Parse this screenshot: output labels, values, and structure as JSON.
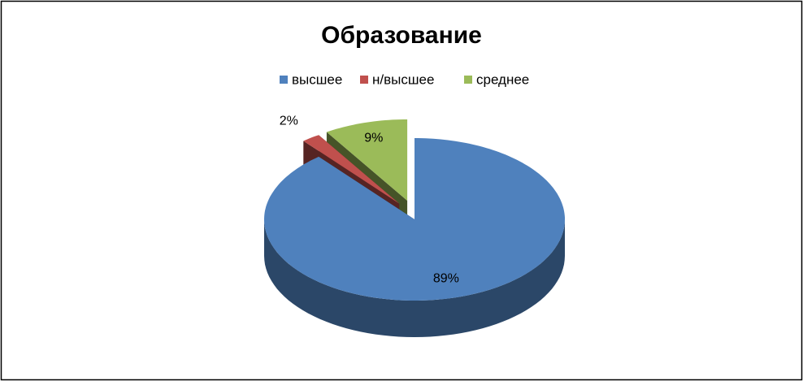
{
  "chart_data": {
    "type": "pie3d",
    "title": "Образование",
    "categories": [
      "высшее",
      "н/высшее",
      "среднее"
    ],
    "values": [
      89,
      2,
      9
    ],
    "value_labels": [
      "89%",
      "2%",
      "9%"
    ],
    "colors": [
      "#4f81bd",
      "#c0504d",
      "#9bbb59"
    ],
    "legend": "top"
  }
}
